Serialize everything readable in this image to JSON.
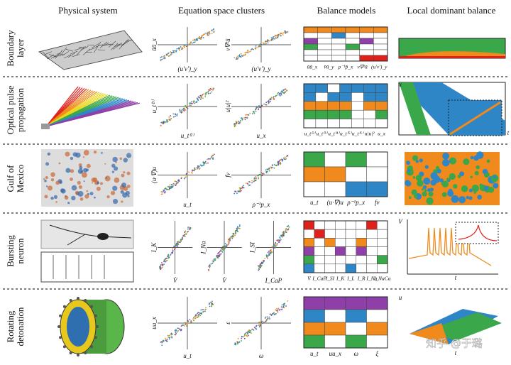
{
  "columns": [
    "Physical system",
    "Equation space clusters",
    "Balance models",
    "Local dominant balance"
  ],
  "rows": [
    {
      "label": [
        "Boundary",
        "layer"
      ],
      "cluster_axes": [
        [
          "ūū_x",
          "(u′v′)_y"
        ],
        [
          "ν∇²ū",
          "(u′v′)_y"
        ]
      ],
      "model_terms": [
        "ūū_x",
        "v̄ū_y",
        "ρ⁻¹p̄_x",
        "ν∇²ū",
        "(u′v′)_y"
      ],
      "local_axes": []
    },
    {
      "label": [
        "Optical pulse",
        "propagation"
      ],
      "cluster_axes": [
        [
          "u_t⁽³⁾",
          "u_t⁽²⁾"
        ],
        [
          "u|u|²",
          "u_x"
        ]
      ],
      "model_terms": [
        "u_t⁽²⁾",
        "u_t⁽³⁾",
        "u_t⁽⁴⁾",
        "u_t⁽⁵⁾",
        "u_t⁽⁶⁾",
        "u|u|²",
        "u_x"
      ],
      "local_axes": [
        "x",
        "t"
      ]
    },
    {
      "label": [
        "Gulf of",
        "Mexico"
      ],
      "cluster_axes": [
        [
          "(u·∇)u",
          "u_t"
        ],
        [
          "fv",
          "ρ⁻¹p_x"
        ]
      ],
      "model_terms": [
        "u_t",
        "(u·∇)u",
        "ρ⁻¹p_x",
        "fv"
      ],
      "local_axes": []
    },
    {
      "label": [
        "Bursting",
        "neuron"
      ],
      "cluster_axes": [
        [
          "I_K",
          "V̇"
        ],
        [
          "I_Na",
          "V̇"
        ],
        [
          "I_SI",
          "I_CaP"
        ]
      ],
      "model_terms": [
        "V̇",
        "I_CaP",
        "I_SI",
        "I_K",
        "I_L",
        "I_R",
        "I_Na",
        "I_NaCa"
      ],
      "local_axes": [
        "V",
        "t"
      ]
    },
    {
      "label": [
        "Rotating",
        "detonation"
      ],
      "cluster_axes": [
        [
          "uu_x",
          "u_t"
        ],
        [
          "ε",
          "ω"
        ]
      ],
      "model_terms": [
        "u_t",
        "uu_x",
        "ω",
        "ξ"
      ],
      "local_axes": [
        "u",
        "t"
      ]
    }
  ],
  "watermark": "知乎 @于璐"
}
